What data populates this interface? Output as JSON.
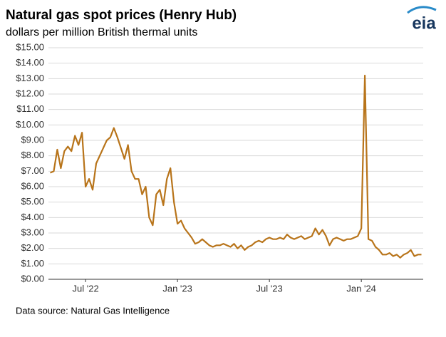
{
  "chart_data": {
    "type": "line",
    "title": "Natural gas spot prices (Henry Hub)",
    "subtitle": "dollars per million British thermal units",
    "logo_text": "eia",
    "source": "Data source: Natural Gas Intelligence",
    "categories": [
      null,
      null,
      null,
      null,
      null,
      null,
      null,
      null,
      null,
      null,
      "Jul '22",
      null,
      null,
      null,
      null,
      null,
      null,
      null,
      null,
      null,
      null,
      null,
      null,
      null,
      null,
      null,
      null,
      null,
      null,
      null,
      null,
      null,
      null,
      null,
      null,
      null,
      "Jan '23",
      null,
      null,
      null,
      null,
      null,
      null,
      null,
      null,
      null,
      null,
      null,
      null,
      null,
      null,
      null,
      null,
      null,
      null,
      null,
      null,
      null,
      null,
      null,
      null,
      null,
      "Jul '23",
      null,
      null,
      null,
      null,
      null,
      null,
      null,
      null,
      null,
      null,
      null,
      null,
      null,
      null,
      null,
      null,
      null,
      null,
      null,
      null,
      null,
      null,
      null,
      null,
      null,
      "Jan '24",
      null,
      null,
      null,
      null,
      null,
      null,
      null,
      null,
      null,
      null,
      null,
      null,
      null,
      null,
      null,
      null,
      null
    ],
    "series": [
      {
        "name": "Henry Hub",
        "color": "#b8741a",
        "values": [
          6.9,
          7.0,
          8.4,
          7.2,
          8.3,
          8.6,
          8.3,
          9.3,
          8.7,
          9.5,
          6.0,
          6.5,
          5.8,
          7.5,
          8.0,
          8.5,
          9.0,
          9.2,
          9.8,
          9.2,
          8.5,
          7.8,
          8.7,
          7.0,
          6.5,
          6.5,
          5.5,
          6.0,
          4.0,
          3.5,
          5.5,
          5.8,
          4.8,
          6.5,
          7.2,
          5.0,
          3.6,
          3.8,
          3.3,
          3.0,
          2.7,
          2.3,
          2.4,
          2.6,
          2.4,
          2.2,
          2.1,
          2.2,
          2.2,
          2.3,
          2.2,
          2.1,
          2.3,
          2.0,
          2.2,
          1.9,
          2.1,
          2.2,
          2.4,
          2.5,
          2.4,
          2.6,
          2.7,
          2.6,
          2.6,
          2.7,
          2.6,
          2.9,
          2.7,
          2.6,
          2.7,
          2.8,
          2.6,
          2.7,
          2.8,
          3.3,
          2.9,
          3.2,
          2.8,
          2.2,
          2.6,
          2.7,
          2.6,
          2.5,
          2.6,
          2.6,
          2.7,
          2.8,
          3.3,
          13.2,
          2.6,
          2.5,
          2.1,
          1.9,
          1.6,
          1.6,
          1.7,
          1.5,
          1.6,
          1.4,
          1.6,
          1.7,
          1.9,
          1.5,
          1.6,
          1.6
        ]
      }
    ],
    "ylim": [
      0,
      15
    ],
    "yticks": [
      {
        "value": 0,
        "label": "$0.00"
      },
      {
        "value": 1,
        "label": "$1.00"
      },
      {
        "value": 2,
        "label": "$2.00"
      },
      {
        "value": 3,
        "label": "$3.00"
      },
      {
        "value": 4,
        "label": "$4.00"
      },
      {
        "value": 5,
        "label": "$5.00"
      },
      {
        "value": 6,
        "label": "$6.00"
      },
      {
        "value": 7,
        "label": "$7.00"
      },
      {
        "value": 8,
        "label": "$8.00"
      },
      {
        "value": 9,
        "label": "$9.00"
      },
      {
        "value": 10,
        "label": "$10.00"
      },
      {
        "value": 11,
        "label": "$11.00"
      },
      {
        "value": 12,
        "label": "$12.00"
      },
      {
        "value": 13,
        "label": "$13.00"
      },
      {
        "value": 14,
        "label": "$14.00"
      },
      {
        "value": 15,
        "label": "$15.00"
      }
    ],
    "grid": true
  }
}
